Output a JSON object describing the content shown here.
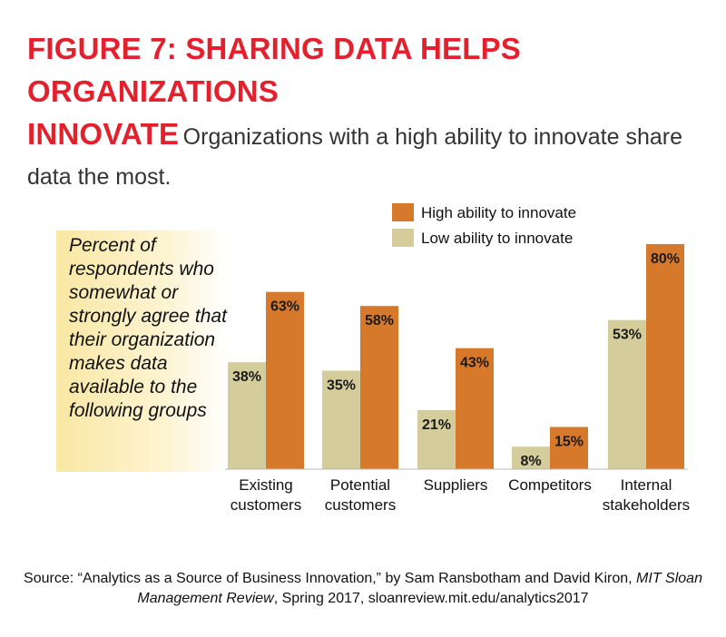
{
  "header": {
    "title_bold_line1": "FIGURE 7: SHARING DATA HELPS ORGANIZATIONS",
    "title_bold_line2": "INNOVATE",
    "subtitle": "Organizations with a high ability to innovate share data the most."
  },
  "callout": {
    "text": "Percent of respondents who somewhat or strongly agree that their organization makes data available to the following groups"
  },
  "colors": {
    "title_red": "#e4202d",
    "high": "#d7792b",
    "low": "#d4cc9b",
    "callout_bg": "#f9e7a3"
  },
  "chart_data": {
    "type": "bar",
    "title": "Percent of respondents who somewhat or strongly agree that their organization makes data available to the following groups",
    "categories": [
      [
        "Existing",
        "customers"
      ],
      [
        "Potential",
        "customers"
      ],
      [
        "Suppliers"
      ],
      [
        "Competitors"
      ],
      [
        "Internal",
        "stakeholders"
      ]
    ],
    "series": [
      {
        "name": "Low ability to innovate",
        "values": [
          38,
          35,
          21,
          8,
          53
        ],
        "labels": [
          "38%",
          "35%",
          "21%",
          "8%",
          "53%"
        ]
      },
      {
        "name": "High ability to innovate",
        "values": [
          63,
          58,
          43,
          15,
          80
        ],
        "labels": [
          "63%",
          "58%",
          "43%",
          "15%",
          "80%"
        ]
      }
    ],
    "legend": [
      "High ability to innovate",
      "Low ability to innovate"
    ],
    "ylim": [
      0,
      100
    ],
    "xlabel": "",
    "ylabel": "",
    "grid": false
  },
  "source": {
    "prefix": "Source: “Analytics as a Source of Business Innovation,” by Sam Ransbotham and David Kiron, ",
    "journal": "MIT Sloan Management Review",
    "suffix": ", Spring 2017, sloanreview.mit.edu/analytics2017"
  }
}
